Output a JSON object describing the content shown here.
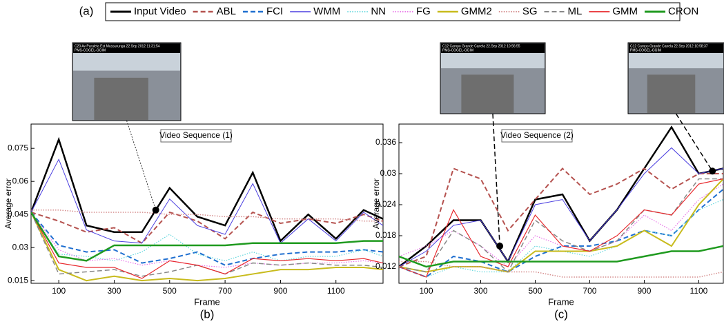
{
  "figure_label": "(a)",
  "chart_data": [
    {
      "type": "line",
      "panel_label": "(b)",
      "title": "Video Sequence (1)",
      "x_label": "Frame",
      "y_label": "Average error",
      "x": [
        0,
        100,
        200,
        300,
        400,
        500,
        600,
        700,
        800,
        900,
        1000,
        1100,
        1200,
        1270
      ],
      "xlim": [
        0,
        1270
      ],
      "ylim": [
        0.0138,
        0.086
      ],
      "xticks": [
        100,
        300,
        500,
        700,
        900,
        1100
      ],
      "yticks": [
        0.015,
        0.03,
        0.045,
        0.06,
        0.075
      ],
      "thumbnails": [
        {
          "caption": "C20 Av Paralela Est Mussurunga  22.Sep 2012  11:31:54",
          "sub": "PMS-COGEL-GGIM"
        }
      ],
      "markers": [
        {
          "x": 450,
          "y": 0.047
        }
      ],
      "series": [
        {
          "name": "Input Video",
          "color": "#000000",
          "dash": "solid",
          "width": 2.5,
          "values": [
            0.046,
            0.079,
            0.04,
            0.037,
            0.037,
            0.057,
            0.044,
            0.04,
            0.064,
            0.033,
            0.045,
            0.034,
            0.047,
            0.043
          ]
        },
        {
          "name": "ABL",
          "color": "#b5524f",
          "dash": "dashed",
          "width": 2,
          "values": [
            0.046,
            0.042,
            0.037,
            0.039,
            0.032,
            0.046,
            0.042,
            0.034,
            0.046,
            0.041,
            0.043,
            0.041,
            0.045,
            0.042
          ]
        },
        {
          "name": "FCI",
          "color": "#1f6fd0",
          "dash": "dashed",
          "width": 2,
          "values": [
            0.046,
            0.031,
            0.028,
            0.029,
            0.023,
            0.025,
            0.028,
            0.022,
            0.025,
            0.027,
            0.028,
            0.028,
            0.029,
            0.028
          ]
        },
        {
          "name": "WMM",
          "color": "#4b3fe0",
          "dash": "solid",
          "width": 1,
          "values": [
            0.046,
            0.07,
            0.038,
            0.033,
            0.032,
            0.052,
            0.04,
            0.036,
            0.059,
            0.032,
            0.043,
            0.033,
            0.046,
            0.04
          ]
        },
        {
          "name": "NN",
          "color": "#5fd6dc",
          "dash": "dotted",
          "width": 1.2,
          "values": [
            0.046,
            0.027,
            0.026,
            0.024,
            0.028,
            0.036,
            0.027,
            0.024,
            0.028,
            0.024,
            0.026,
            0.026,
            0.029,
            0.026
          ]
        },
        {
          "name": "FG",
          "color": "#e86fe8",
          "dash": "dotted",
          "width": 1.2,
          "values": [
            0.046,
            0.029,
            0.024,
            0.025,
            0.022,
            0.024,
            0.022,
            0.021,
            0.023,
            0.022,
            0.023,
            0.023,
            0.024,
            0.023
          ]
        },
        {
          "name": "GMM2",
          "color": "#c8bb1c",
          "dash": "solid",
          "width": 2,
          "values": [
            0.046,
            0.02,
            0.015,
            0.017,
            0.015,
            0.016,
            0.015,
            0.016,
            0.018,
            0.02,
            0.02,
            0.021,
            0.021,
            0.02
          ]
        },
        {
          "name": "SG",
          "color": "#d48a8a",
          "dash": "dotted",
          "width": 1.5,
          "values": [
            0.047,
            0.047,
            0.046,
            0.046,
            0.046,
            0.045,
            0.045,
            0.044,
            0.044,
            0.043,
            0.043,
            0.043,
            0.042,
            0.042
          ]
        },
        {
          "name": "ML",
          "color": "#888888",
          "dash": "dashed",
          "width": 1.5,
          "values": [
            0.046,
            0.018,
            0.019,
            0.02,
            0.017,
            0.019,
            0.022,
            0.018,
            0.023,
            0.022,
            0.023,
            0.022,
            0.022,
            0.021
          ]
        },
        {
          "name": "GMM",
          "color": "#e8292d",
          "dash": "solid",
          "width": 1.2,
          "values": [
            0.046,
            0.023,
            0.021,
            0.021,
            0.016,
            0.024,
            0.022,
            0.018,
            0.025,
            0.024,
            0.025,
            0.024,
            0.025,
            0.023
          ]
        },
        {
          "name": "CRON",
          "color": "#1f9a1f",
          "dash": "solid",
          "width": 2.5,
          "values": [
            0.046,
            0.026,
            0.024,
            0.031,
            0.031,
            0.031,
            0.031,
            0.031,
            0.032,
            0.032,
            0.032,
            0.032,
            0.033,
            0.033
          ]
        }
      ]
    },
    {
      "type": "line",
      "panel_label": "(c)",
      "title": "Video Sequence (2)",
      "x_label": "Frame",
      "y_label": "Average error",
      "x": [
        0,
        100,
        200,
        300,
        400,
        500,
        600,
        700,
        800,
        900,
        1000,
        1100,
        1190
      ],
      "xlim": [
        0,
        1190
      ],
      "ylim": [
        0.0088,
        0.0396
      ],
      "xticks": [
        100,
        300,
        500,
        700,
        900,
        1100
      ],
      "yticks": [
        0.012,
        0.018,
        0.024,
        0.03,
        0.036
      ],
      "thumbnails": [
        {
          "caption": "C12 Campo Grande Canela  22.Sep 2012  10:56:55",
          "sub": "PMS-COGEL-GGIM"
        },
        {
          "caption": "C12 Campo Grande Canela  22.Sep 2012  10:58:37",
          "sub": "PMS-COGEL-GGIM"
        }
      ],
      "markers": [
        {
          "x": 370,
          "y": 0.016
        },
        {
          "x": 1150,
          "y": 0.0305
        }
      ],
      "series": [
        {
          "values": [
            0.012,
            0.016,
            0.021,
            0.021,
            0.013,
            0.025,
            0.026,
            0.017,
            0.023,
            0.031,
            0.039,
            0.03,
            0.031
          ]
        },
        {
          "values": [
            0.012,
            0.014,
            0.031,
            0.029,
            0.019,
            0.025,
            0.031,
            0.026,
            0.028,
            0.031,
            0.027,
            0.03,
            0.03
          ]
        },
        {
          "values": [
            0.012,
            0.01,
            0.014,
            0.013,
            0.011,
            0.014,
            0.016,
            0.016,
            0.017,
            0.019,
            0.018,
            0.023,
            0.027
          ]
        },
        {
          "values": [
            0.012,
            0.015,
            0.02,
            0.021,
            0.013,
            0.024,
            0.025,
            0.017,
            0.023,
            0.03,
            0.035,
            0.03,
            0.031
          ]
        },
        {
          "values": [
            0.012,
            0.01,
            0.012,
            0.011,
            0.011,
            0.016,
            0.015,
            0.014,
            0.016,
            0.019,
            0.018,
            0.023,
            0.025
          ]
        },
        {
          "values": [
            0.014,
            0.016,
            0.019,
            0.016,
            0.012,
            0.018,
            0.016,
            0.015,
            0.017,
            0.022,
            0.019,
            0.025,
            0.028
          ]
        },
        {
          "values": [
            0.012,
            0.011,
            0.012,
            0.012,
            0.011,
            0.015,
            0.015,
            0.015,
            0.016,
            0.019,
            0.016,
            0.024,
            0.029
          ]
        },
        {
          "values": [
            0.013,
            0.013,
            0.012,
            0.012,
            0.011,
            0.011,
            0.01,
            0.01,
            0.01,
            0.01,
            0.01,
            0.01,
            0.011
          ]
        },
        {
          "values": [
            0.012,
            0.011,
            0.019,
            0.016,
            0.011,
            0.021,
            0.017,
            0.015,
            0.017,
            0.023,
            0.022,
            0.029,
            0.029
          ]
        },
        {
          "values": [
            0.012,
            0.01,
            0.023,
            0.014,
            0.012,
            0.022,
            0.016,
            0.015,
            0.018,
            0.023,
            0.022,
            0.028,
            0.029
          ]
        },
        {
          "values": [
            0.014,
            0.012,
            0.013,
            0.013,
            0.013,
            0.013,
            0.013,
            0.013,
            0.013,
            0.014,
            0.015,
            0.015,
            0.016
          ]
        }
      ]
    }
  ]
}
